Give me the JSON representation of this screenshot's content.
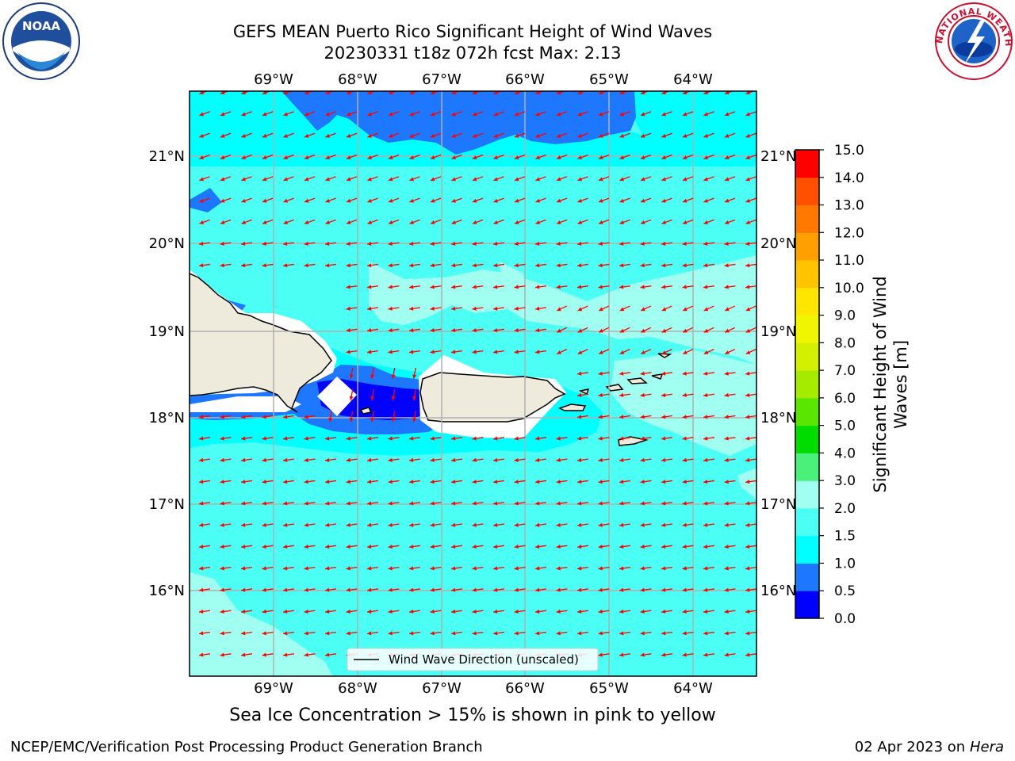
{
  "title": {
    "line1": "GEFS MEAN Puerto Rico Significant Height of Wind Waves",
    "line2": "20230331 t18z 072h fcst   Max: 2.13"
  },
  "logos": {
    "left": "noaa-logo",
    "right": "nws-logo",
    "left_text": "NOAA",
    "right_text": "NATIONAL WEATHER SERVICE"
  },
  "map": {
    "lon_labels": [
      "69°W",
      "68°W",
      "67°W",
      "66°W",
      "65°W",
      "64°W"
    ],
    "lat_labels": [
      "21°N",
      "20°N",
      "19°N",
      "18°N",
      "17°N",
      "16°N"
    ],
    "legend_label": "Wind Wave Direction (unscaled)",
    "arrow_color": "#ff0000",
    "land_color": "#efebdc"
  },
  "colorbar": {
    "label": "Significant Height of Wind Waves [m]",
    "label_line1": "Significant Height of Wind",
    "label_line2": "Waves [m]",
    "ticks": [
      "0.0",
      "0.5",
      "1.0",
      "1.5",
      "2.0",
      "3.0",
      "4.0",
      "5.0",
      "6.0",
      "7.0",
      "8.0",
      "9.0",
      "10.0",
      "11.0",
      "12.0",
      "13.0",
      "14.0",
      "15.0"
    ],
    "colors": [
      "#0000ff",
      "#1e78ff",
      "#00ffff",
      "#4bfff5",
      "#a0fff0",
      "#4bf07a",
      "#00dc00",
      "#5ae600",
      "#a5eb00",
      "#d2f000",
      "#f0f500",
      "#ffe600",
      "#ffc300",
      "#ffa000",
      "#ff7800",
      "#ff5000",
      "#ff0000"
    ]
  },
  "ice_note": "Sea Ice Concentration > 15% is shown in pink to yellow",
  "footer": {
    "left": "NCEP/EMC/Verification Post Processing Product Generation Branch",
    "right_date": "02 Apr 2023 on ",
    "right_host": "Hera"
  }
}
